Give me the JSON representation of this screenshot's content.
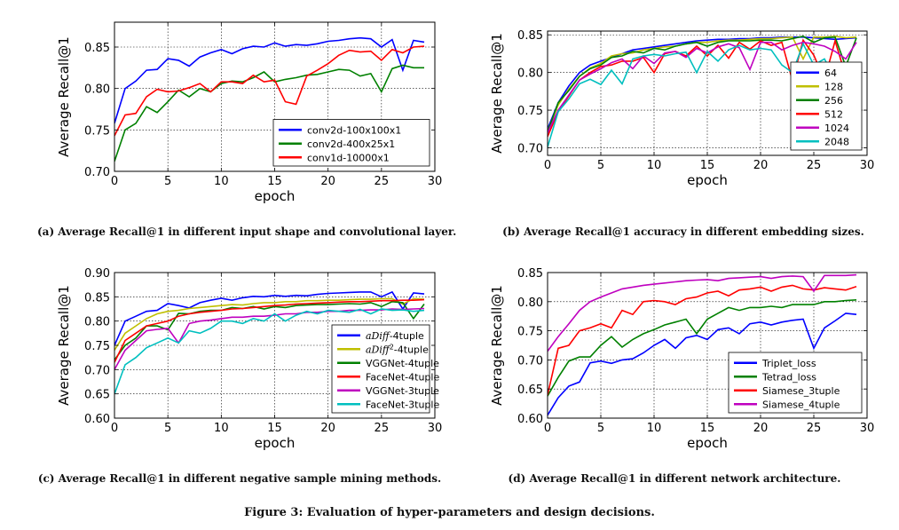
{
  "figure_caption": "Figure 3: Evaluation of hyper-parameters and design decisions.",
  "chart_data": [
    {
      "id": "a",
      "type": "line",
      "caption": "(a)  Average  Recall@1  in  different  input  shape  and  convolutional layer.",
      "xlabel": "epoch",
      "ylabel": "Average Recall@1",
      "xlim": [
        0,
        30
      ],
      "ylim": [
        0.7,
        0.88
      ],
      "xticks": [
        0,
        5,
        10,
        15,
        20,
        25,
        30
      ],
      "yticks": [
        0.7,
        0.75,
        0.8,
        0.85
      ],
      "ytick_labels": [
        "0.70",
        "0.75",
        "0.80",
        "0.85"
      ],
      "legend_position": "lower-right",
      "x": [
        0,
        1,
        2,
        3,
        4,
        5,
        6,
        7,
        8,
        9,
        10,
        11,
        12,
        13,
        14,
        15,
        16,
        17,
        18,
        19,
        20,
        21,
        22,
        23,
        24,
        25,
        26,
        27,
        28,
        29
      ],
      "series": [
        {
          "name": "conv2d-100x100x1",
          "color": "#0000ff",
          "values": [
            0.758,
            0.8,
            0.809,
            0.822,
            0.823,
            0.836,
            0.834,
            0.827,
            0.838,
            0.843,
            0.847,
            0.842,
            0.848,
            0.851,
            0.85,
            0.855,
            0.851,
            0.853,
            0.852,
            0.854,
            0.857,
            0.858,
            0.86,
            0.861,
            0.86,
            0.85,
            0.859,
            0.822,
            0.858,
            0.856
          ]
        },
        {
          "name": "conv2d-400x25x1",
          "color": "#008000",
          "values": [
            0.712,
            0.75,
            0.758,
            0.778,
            0.771,
            0.784,
            0.798,
            0.79,
            0.8,
            0.796,
            0.806,
            0.809,
            0.808,
            0.813,
            0.82,
            0.808,
            0.811,
            0.813,
            0.816,
            0.817,
            0.82,
            0.823,
            0.822,
            0.815,
            0.818,
            0.796,
            0.824,
            0.828,
            0.825,
            0.825
          ]
        },
        {
          "name": "conv1d-10000x1",
          "color": "#ff0000",
          "values": [
            0.743,
            0.768,
            0.77,
            0.79,
            0.799,
            0.796,
            0.797,
            0.801,
            0.806,
            0.796,
            0.808,
            0.808,
            0.806,
            0.816,
            0.808,
            0.81,
            0.784,
            0.781,
            0.815,
            0.822,
            0.83,
            0.84,
            0.846,
            0.844,
            0.845,
            0.834,
            0.847,
            0.843,
            0.85,
            0.851
          ]
        }
      ]
    },
    {
      "id": "b",
      "type": "line",
      "caption": "(b) Average Recall@1 accuracy in different embedding sizes.",
      "xlabel": "epoch",
      "ylabel": "Average Recall@1",
      "xlim": [
        0,
        30
      ],
      "ylim": [
        0.69,
        0.855
      ],
      "xticks": [
        0,
        5,
        10,
        15,
        20,
        25,
        30
      ],
      "yticks": [
        0.7,
        0.75,
        0.8,
        0.85
      ],
      "ytick_labels": [
        "0.70",
        "0.75",
        "0.80",
        "0.85"
      ],
      "legend_position": "lower-right",
      "x": [
        0,
        1,
        2,
        3,
        4,
        5,
        6,
        7,
        8,
        9,
        10,
        11,
        12,
        13,
        14,
        15,
        16,
        17,
        18,
        19,
        20,
        21,
        22,
        23,
        24,
        25,
        26,
        27,
        28,
        29
      ],
      "series": [
        {
          "name": "64",
          "color": "#0000ff",
          "values": [
            0.725,
            0.76,
            0.782,
            0.8,
            0.81,
            0.815,
            0.82,
            0.825,
            0.83,
            0.832,
            0.834,
            0.836,
            0.838,
            0.84,
            0.842,
            0.843,
            0.844,
            0.844,
            0.845,
            0.845,
            0.846,
            0.846,
            0.847,
            0.847,
            0.847,
            0.846,
            0.845,
            0.844,
            0.845,
            0.846
          ]
        },
        {
          "name": "128",
          "color": "#bfbf00",
          "values": [
            0.722,
            0.757,
            0.778,
            0.795,
            0.806,
            0.812,
            0.822,
            0.825,
            0.826,
            0.83,
            0.832,
            0.834,
            0.835,
            0.838,
            0.84,
            0.84,
            0.842,
            0.843,
            0.843,
            0.844,
            0.845,
            0.845,
            0.846,
            0.847,
            0.818,
            0.847,
            0.847,
            0.848,
            0.846,
            0.847
          ]
        },
        {
          "name": "256",
          "color": "#008000",
          "values": [
            0.721,
            0.76,
            0.776,
            0.795,
            0.805,
            0.81,
            0.82,
            0.822,
            0.828,
            0.826,
            0.832,
            0.83,
            0.835,
            0.838,
            0.84,
            0.835,
            0.84,
            0.842,
            0.842,
            0.842,
            0.843,
            0.843,
            0.842,
            0.845,
            0.848,
            0.84,
            0.846,
            0.847,
            0.808,
            0.846
          ]
        },
        {
          "name": "512",
          "color": "#ff0000",
          "values": [
            0.715,
            0.748,
            0.769,
            0.79,
            0.8,
            0.808,
            0.81,
            0.815,
            0.815,
            0.82,
            0.8,
            0.825,
            0.828,
            0.822,
            0.835,
            0.822,
            0.836,
            0.819,
            0.84,
            0.831,
            0.842,
            0.836,
            0.84,
            0.789,
            0.843,
            0.823,
            0.79,
            0.842,
            0.795,
            0.788
          ]
        },
        {
          "name": "1024",
          "color": "#bf00bf",
          "values": [
            0.72,
            0.75,
            0.77,
            0.79,
            0.798,
            0.805,
            0.813,
            0.818,
            0.805,
            0.822,
            0.812,
            0.826,
            0.828,
            0.82,
            0.832,
            0.826,
            0.834,
            0.838,
            0.833,
            0.804,
            0.84,
            0.84,
            0.83,
            0.836,
            0.84,
            0.838,
            0.835,
            0.828,
            0.818,
            0.84
          ]
        },
        {
          "name": "2048",
          "color": "#00bfbf",
          "values": [
            0.701,
            0.748,
            0.765,
            0.785,
            0.791,
            0.784,
            0.803,
            0.785,
            0.818,
            0.822,
            0.824,
            0.822,
            0.825,
            0.827,
            0.8,
            0.828,
            0.815,
            0.83,
            0.836,
            0.83,
            0.832,
            0.83,
            0.81,
            0.8,
            0.838,
            0.81,
            0.818,
            0.792,
            0.732,
            0.768
          ]
        }
      ]
    },
    {
      "id": "c",
      "type": "line",
      "caption": "(c) Average Recall@1 in different negative sample mining methods.",
      "xlabel": "epoch",
      "ylabel": "Average Recall@1",
      "xlim": [
        0,
        30
      ],
      "ylim": [
        0.6,
        0.9
      ],
      "xticks": [
        0,
        5,
        10,
        15,
        20,
        25,
        30
      ],
      "yticks": [
        0.6,
        0.65,
        0.7,
        0.75,
        0.8,
        0.85,
        0.9
      ],
      "ytick_labels": [
        "0.60",
        "0.65",
        "0.70",
        "0.75",
        "0.80",
        "0.85",
        "0.90"
      ],
      "legend_position": "lower-right",
      "x": [
        0,
        1,
        2,
        3,
        4,
        5,
        6,
        7,
        8,
        9,
        10,
        11,
        12,
        13,
        14,
        15,
        16,
        17,
        18,
        19,
        20,
        21,
        22,
        23,
        24,
        25,
        26,
        27,
        28,
        29
      ],
      "series": [
        {
          "name": "aDiff-4tuple",
          "color": "#0000ff",
          "values": [
            0.75,
            0.8,
            0.81,
            0.82,
            0.822,
            0.836,
            0.832,
            0.827,
            0.838,
            0.843,
            0.847,
            0.843,
            0.848,
            0.851,
            0.85,
            0.853,
            0.851,
            0.853,
            0.852,
            0.855,
            0.857,
            0.858,
            0.859,
            0.86,
            0.86,
            0.85,
            0.86,
            0.825,
            0.858,
            0.856
          ]
        },
        {
          "name": "aDiff2-4tuple",
          "color": "#bfbf00",
          "values": [
            0.74,
            0.775,
            0.79,
            0.805,
            0.815,
            0.82,
            0.822,
            0.826,
            0.828,
            0.83,
            0.832,
            0.834,
            0.833,
            0.836,
            0.838,
            0.838,
            0.84,
            0.84,
            0.842,
            0.842,
            0.843,
            0.843,
            0.844,
            0.845,
            0.845,
            0.846,
            0.846,
            0.835,
            0.846,
            0.845
          ]
        },
        {
          "name": "VGGNet-4tuple",
          "color": "#008000",
          "values": [
            0.72,
            0.75,
            0.765,
            0.79,
            0.79,
            0.782,
            0.816,
            0.815,
            0.82,
            0.822,
            0.822,
            0.828,
            0.826,
            0.83,
            0.825,
            0.83,
            0.828,
            0.832,
            0.833,
            0.834,
            0.834,
            0.835,
            0.836,
            0.835,
            0.838,
            0.83,
            0.84,
            0.838,
            0.805,
            0.835
          ]
        },
        {
          "name": "FaceNet-4tuple",
          "color": "#ff0000",
          "values": [
            0.715,
            0.76,
            0.775,
            0.79,
            0.795,
            0.8,
            0.81,
            0.815,
            0.818,
            0.82,
            0.822,
            0.825,
            0.826,
            0.828,
            0.83,
            0.832,
            0.833,
            0.835,
            0.836,
            0.837,
            0.838,
            0.839,
            0.84,
            0.84,
            0.841,
            0.842,
            0.842,
            0.843,
            0.843,
            0.844
          ]
        },
        {
          "name": "VGGNet-3tuple",
          "color": "#bf00bf",
          "values": [
            0.7,
            0.74,
            0.76,
            0.78,
            0.783,
            0.785,
            0.755,
            0.795,
            0.8,
            0.802,
            0.805,
            0.808,
            0.808,
            0.81,
            0.81,
            0.812,
            0.815,
            0.815,
            0.818,
            0.818,
            0.82,
            0.82,
            0.822,
            0.822,
            0.823,
            0.823,
            0.825,
            0.824,
            0.825,
            0.826
          ]
        },
        {
          "name": "FaceNet-3tuple",
          "color": "#00bfbf",
          "values": [
            0.65,
            0.71,
            0.725,
            0.745,
            0.755,
            0.765,
            0.755,
            0.78,
            0.775,
            0.785,
            0.8,
            0.8,
            0.795,
            0.805,
            0.8,
            0.815,
            0.8,
            0.812,
            0.82,
            0.815,
            0.822,
            0.82,
            0.818,
            0.824,
            0.815,
            0.825,
            0.822,
            0.823,
            0.82,
            0.822
          ]
        }
      ]
    },
    {
      "id": "d",
      "type": "line",
      "caption": "(d) Average Recall@1 in different network architecture.",
      "xlabel": "epoch",
      "ylabel": "Average Recall@1",
      "xlim": [
        0,
        30
      ],
      "ylim": [
        0.6,
        0.85
      ],
      "xticks": [
        0,
        5,
        10,
        15,
        20,
        25,
        30
      ],
      "yticks": [
        0.6,
        0.65,
        0.7,
        0.75,
        0.8,
        0.85
      ],
      "ytick_labels": [
        "0.60",
        "0.65",
        "0.70",
        "0.75",
        "0.80",
        "0.85"
      ],
      "legend_position": "lower-right",
      "x": [
        0,
        1,
        2,
        3,
        4,
        5,
        6,
        7,
        8,
        9,
        10,
        11,
        12,
        13,
        14,
        15,
        16,
        17,
        18,
        19,
        20,
        21,
        22,
        23,
        24,
        25,
        26,
        27,
        28,
        29
      ],
      "series": [
        {
          "name": "Triplet_loss",
          "color": "#0000ff",
          "values": [
            0.605,
            0.635,
            0.655,
            0.662,
            0.695,
            0.698,
            0.694,
            0.7,
            0.702,
            0.712,
            0.725,
            0.735,
            0.72,
            0.738,
            0.742,
            0.735,
            0.752,
            0.755,
            0.745,
            0.762,
            0.765,
            0.76,
            0.765,
            0.768,
            0.77,
            0.72,
            0.755,
            0.767,
            0.78,
            0.778
          ]
        },
        {
          "name": "Tetrad_loss",
          "color": "#008000",
          "values": [
            0.638,
            0.67,
            0.698,
            0.705,
            0.705,
            0.725,
            0.74,
            0.722,
            0.735,
            0.745,
            0.752,
            0.76,
            0.765,
            0.77,
            0.745,
            0.77,
            0.78,
            0.79,
            0.785,
            0.79,
            0.79,
            0.792,
            0.79,
            0.795,
            0.795,
            0.795,
            0.8,
            0.8,
            0.802,
            0.803
          ]
        },
        {
          "name": "Siamese_3tuple",
          "color": "#ff0000",
          "values": [
            0.64,
            0.72,
            0.725,
            0.75,
            0.755,
            0.762,
            0.755,
            0.785,
            0.778,
            0.8,
            0.802,
            0.8,
            0.795,
            0.805,
            0.808,
            0.815,
            0.818,
            0.81,
            0.82,
            0.822,
            0.825,
            0.818,
            0.825,
            0.828,
            0.822,
            0.82,
            0.824,
            0.822,
            0.82,
            0.826
          ]
        },
        {
          "name": "Siamese_4tuple",
          "color": "#bf00bf",
          "values": [
            0.715,
            0.74,
            0.762,
            0.785,
            0.8,
            0.808,
            0.815,
            0.822,
            0.825,
            0.828,
            0.83,
            0.832,
            0.834,
            0.836,
            0.837,
            0.838,
            0.836,
            0.84,
            0.841,
            0.842,
            0.843,
            0.84,
            0.843,
            0.844,
            0.843,
            0.818,
            0.845,
            0.845,
            0.845,
            0.846
          ]
        }
      ]
    }
  ]
}
